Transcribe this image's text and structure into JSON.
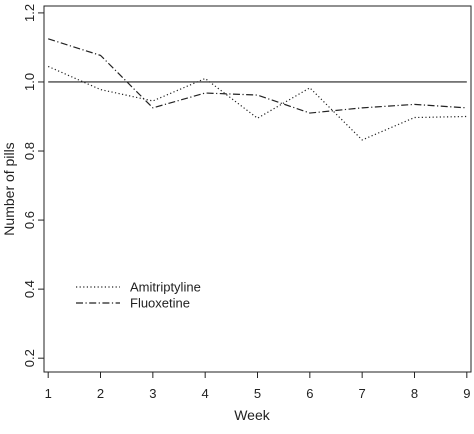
{
  "chart_data": {
    "type": "line",
    "xlabel": "Week",
    "ylabel": "Number of pills",
    "xlim": [
      0.92,
      9.08
    ],
    "ylim": [
      0.16,
      1.22
    ],
    "xticks": [
      "1",
      "2",
      "3",
      "4",
      "5",
      "6",
      "7",
      "8",
      "9"
    ],
    "yticks": [
      "0.2",
      "0.4",
      "0.6",
      "0.8",
      "1.0",
      "1.2"
    ],
    "x": [
      1,
      2,
      3,
      4,
      5,
      6,
      7,
      8,
      9
    ],
    "reference_line": {
      "y": 1.0
    },
    "series": [
      {
        "name": "Amitriptyline",
        "values": [
          1.045,
          0.978,
          0.945,
          1.01,
          0.895,
          0.983,
          0.832,
          0.897,
          0.9
        ]
      },
      {
        "name": "Fluoxetine",
        "values": [
          1.125,
          1.077,
          0.925,
          0.968,
          0.962,
          0.91,
          0.925,
          0.935,
          0.925
        ]
      }
    ],
    "grid": false,
    "legend": "bottom-left",
    "colors": {
      "line": "#222222",
      "axis": "#222222",
      "background": "#ffffff"
    }
  }
}
